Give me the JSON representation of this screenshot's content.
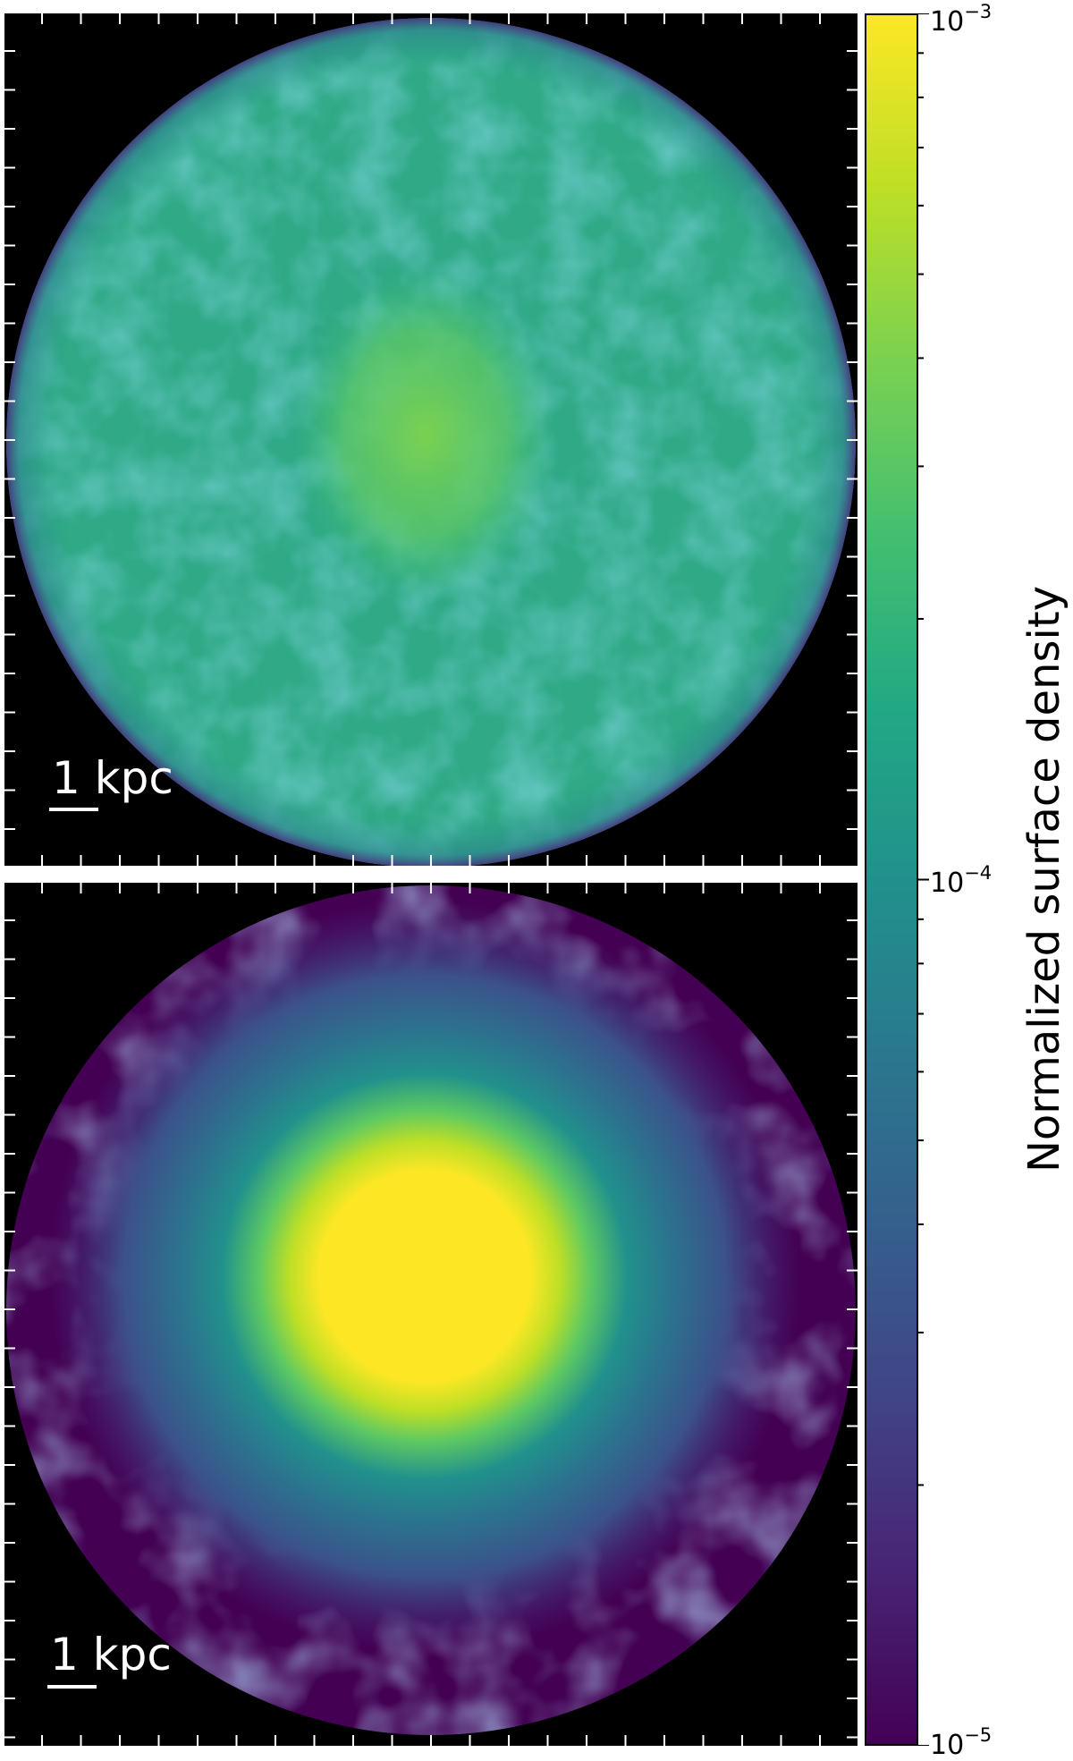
{
  "chart_data": [
    {
      "type": "heatmap",
      "panel": "top",
      "description_values": {
        "map_value_range": [
          6e-05,
          0.0004
        ],
        "typical_value": 0.0002,
        "center_value": 0.0003
      },
      "scalebar_label": "1 kpc",
      "scale": "log",
      "colormap": "viridis"
    },
    {
      "type": "heatmap",
      "panel": "bottom",
      "description_values": {
        "map_value_range": [
          1e-05,
          0.001
        ],
        "typical_outer_value": 2e-05,
        "center_value": 0.001
      },
      "scalebar_label": "1 kpc",
      "scale": "log",
      "colormap": "viridis"
    }
  ],
  "colorbar": {
    "label": "Normalized surface density",
    "scale": "log",
    "range": [
      1e-05,
      0.001
    ],
    "ticks": [
      {
        "base": "10",
        "exp": "−3"
      },
      {
        "base": "10",
        "exp": "−4"
      },
      {
        "base": "10",
        "exp": "−5"
      }
    ],
    "colors": [
      "#440154",
      "#482475",
      "#414487",
      "#355f8d",
      "#2a788e",
      "#21918c",
      "#22a884",
      "#44bf70",
      "#7ad151",
      "#bddf26",
      "#fde725"
    ]
  }
}
